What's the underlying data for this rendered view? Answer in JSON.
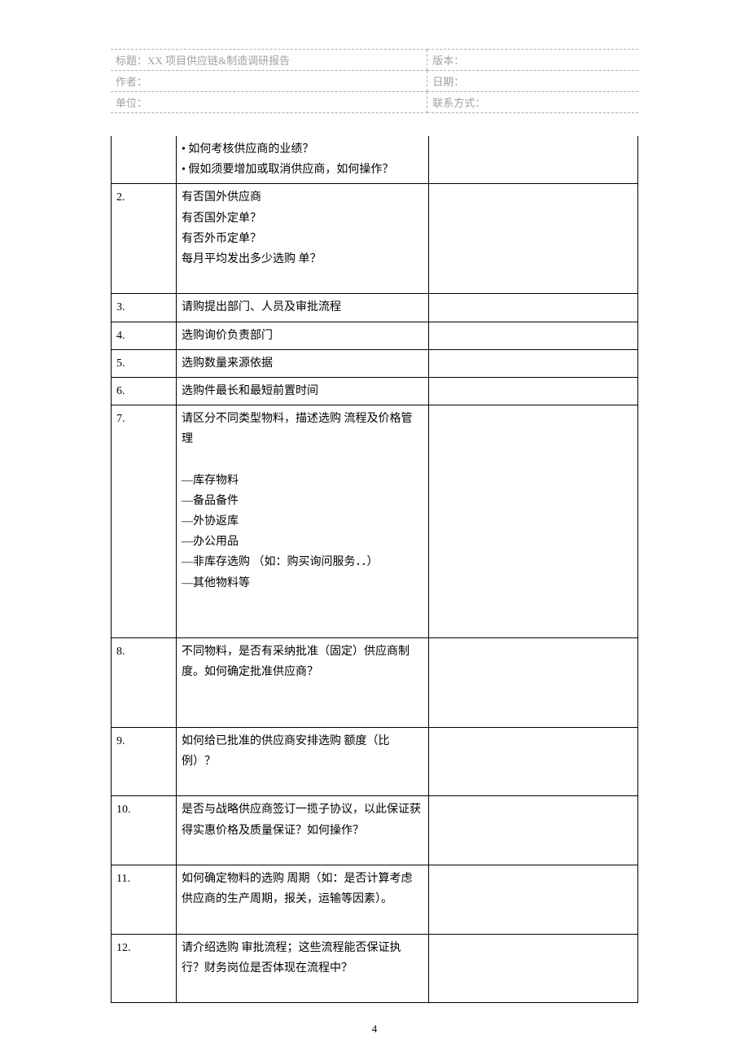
{
  "header": {
    "title_label": "标题：",
    "title_value": "XX 项目供应链&制造调研报告",
    "version_label": "版本：",
    "author_label": "作者：",
    "date_label": "日期：",
    "unit_label": "单位：",
    "contact_label": "联系方式："
  },
  "rows": [
    {
      "num": "",
      "q_lines": [
        "• 如何考核供应商的业绩？",
        "• 假如须要增加或取消供应商，如何操作？"
      ],
      "a": "",
      "continuation": true
    },
    {
      "num": "2.",
      "q_lines": [
        "有否国外供应商",
        "有否国外定单？",
        "有否外币定单？",
        "每月平均发出多少选购  单？",
        ""
      ],
      "a": ""
    },
    {
      "num": "3.",
      "q_lines": [
        "请购提出部门、人员及审批流程"
      ],
      "a": ""
    },
    {
      "num": "4.",
      "q_lines": [
        "选购询价负责部门"
      ],
      "a": ""
    },
    {
      "num": "5.",
      "q_lines": [
        "选购数量来源依据"
      ],
      "a": ""
    },
    {
      "num": "6.",
      "q_lines": [
        "选购件最长和最短前置时间"
      ],
      "a": ""
    },
    {
      "num": "7.",
      "q_lines": [
        "请区分不同类型物料，描述选购  流程及价格管理",
        "",
        "—库存物料",
        "—备品备件",
        "—外协返库",
        "—办公用品",
        "—非库存选购 （如：购买询问服务．．）",
        "—其他物料等",
        "",
        ""
      ],
      "a": ""
    },
    {
      "num": "8.",
      "q_lines": [
        "不同物料，是否有采纳批准（固定）供应商制度。如何确定批准供应商？",
        "",
        ""
      ],
      "a": ""
    },
    {
      "num": "9.",
      "q_lines": [
        "如何给已批准的供应商安排选购  额度（比例）？",
        ""
      ],
      "a": ""
    },
    {
      "num": "10.",
      "q_lines": [
        "是否与战略供应商签订一揽子协议，以此保证获得实惠价格及质量保证？如何操作？",
        ""
      ],
      "a": ""
    },
    {
      "num": "11.",
      "q_lines": [
        "如何确定物料的选购    周期（如：是否计算考虑供应商的生产周期，报关，运输等因素）。",
        ""
      ],
      "a": ""
    },
    {
      "num": "12.",
      "q_lines": [
        "请介绍选购    审批流程；这些流程能否保证执行？财务岗位是否体现在流程中？",
        ""
      ],
      "a": ""
    }
  ],
  "page_number": "4",
  "colors": {
    "text": "#000000",
    "header_text": "#a0a0a0",
    "header_border": "#b0b0b0",
    "table_border": "#000000",
    "background": "#ffffff"
  }
}
